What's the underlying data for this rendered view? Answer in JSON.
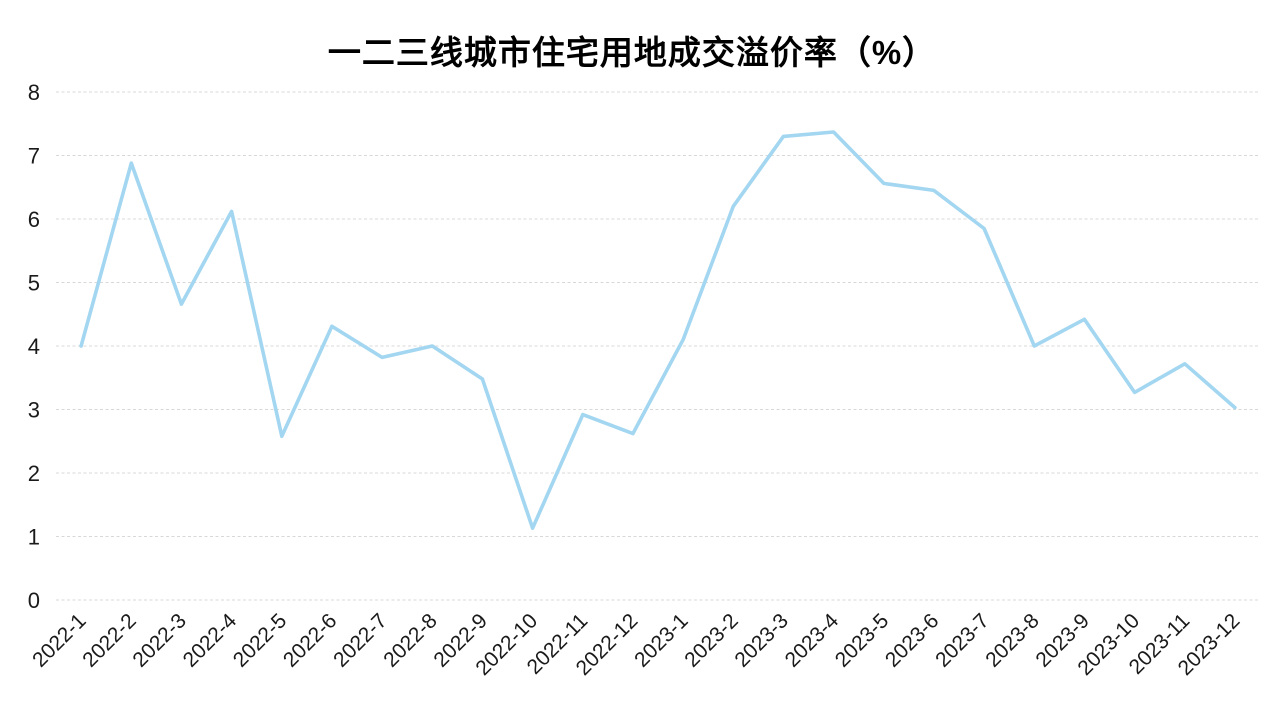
{
  "chart_data": {
    "type": "line",
    "title": "一二三线城市住宅用地成交溢价率（%）",
    "xlabel": "",
    "ylabel": "",
    "categories": [
      "2022-1",
      "2022-2",
      "2022-3",
      "2022-4",
      "2022-5",
      "2022-6",
      "2022-7",
      "2022-8",
      "2022-9",
      "2022-10",
      "2022-11",
      "2022-12",
      "2023-1",
      "2023-2",
      "2023-3",
      "2023-4",
      "2023-5",
      "2023-6",
      "2023-7",
      "2023-8",
      "2023-9",
      "2023-10",
      "2023-11",
      "2023-12"
    ],
    "values": [
      4.0,
      6.88,
      4.66,
      6.12,
      2.58,
      4.31,
      3.82,
      4.0,
      3.48,
      1.13,
      2.92,
      2.62,
      4.1,
      6.2,
      7.3,
      7.37,
      6.56,
      6.45,
      5.85,
      4.0,
      4.42,
      3.27,
      3.72,
      3.03
    ],
    "ylim": [
      0,
      8
    ],
    "yticks": [
      0,
      1,
      2,
      3,
      4,
      5,
      6,
      7,
      8
    ],
    "grid": "horizontal-dashed",
    "legend": "none",
    "markers": "none",
    "line_color": "#A3D6F0",
    "grid_color": "#D8D8D8",
    "text_color": "#1A1A1A",
    "background": "#FFFFFF"
  }
}
